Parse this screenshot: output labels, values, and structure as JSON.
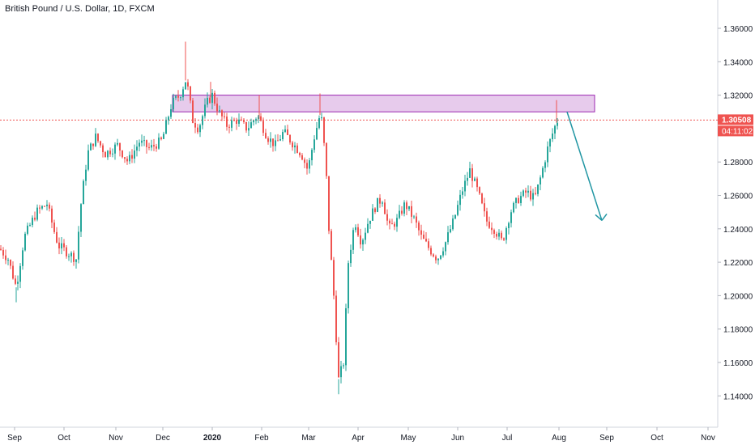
{
  "header": {
    "title": "British Pound / U.S. Dollar, 1D, FXCM"
  },
  "price_axis": {
    "ticks": [
      "1.36000",
      "1.34000",
      "1.32000",
      "1.30000",
      "1.28000",
      "1.26000",
      "1.24000",
      "1.22000",
      "1.20000",
      "1.18000",
      "1.16000",
      "1.14000"
    ],
    "last_price": "1.30508",
    "countdown": "04:11:02"
  },
  "time_axis": {
    "labels": [
      "Sep",
      "Oct",
      "Nov",
      "Dec",
      "2020",
      "Feb",
      "Mar",
      "Apr",
      "May",
      "Jun",
      "Jul",
      "Aug",
      "Sep",
      "Oct",
      "Nov"
    ]
  },
  "colors": {
    "up": "#26a69a",
    "down": "#ef5350",
    "zone_fill": "#e1bee7",
    "zone_border": "#9c27b0",
    "arrow": "#2196a3",
    "last_price": "#ef5350"
  },
  "chart_data": {
    "type": "candlestick",
    "symbol": "GBP/USD",
    "interval": "1D",
    "ylim": [
      1.12,
      1.37
    ],
    "last_price": 1.30508,
    "resistance_zone": {
      "low": 1.31,
      "high": 1.32,
      "from": "Dec 2019",
      "to": "late Aug 2020"
    },
    "projection_arrow": {
      "from": {
        "date": "Aug 2020",
        "price": 1.31
      },
      "to": {
        "date": "late Aug 2020",
        "price": 1.245
      }
    },
    "series": [
      {
        "date": "Aug 2019",
        "price": 1.225
      },
      {
        "date": "Sep 2019",
        "price": 1.205
      },
      {
        "date": "Sep 2019",
        "price": 1.235
      },
      {
        "date": "Sep 2019",
        "price": 1.25
      },
      {
        "date": "Sep 2019",
        "price": 1.255
      },
      {
        "date": "Oct 2019",
        "price": 1.235
      },
      {
        "date": "Oct 2019",
        "price": 1.228
      },
      {
        "date": "Oct 2019",
        "price": 1.225
      },
      {
        "date": "Oct 2019",
        "price": 1.28
      },
      {
        "date": "Oct 2019",
        "price": 1.295
      },
      {
        "date": "Nov 2019",
        "price": 1.285
      },
      {
        "date": "Nov 2019",
        "price": 1.29
      },
      {
        "date": "Nov 2019",
        "price": 1.28
      },
      {
        "date": "Nov 2019",
        "price": 1.29
      },
      {
        "date": "Dec 2019",
        "price": 1.293
      },
      {
        "date": "Dec 2019",
        "price": 1.315
      },
      {
        "date": "Dec 2019",
        "price": 1.33
      },
      {
        "date": "Dec 2019",
        "price": 1.305
      },
      {
        "date": "Jan 2020",
        "price": 1.31
      },
      {
        "date": "Jan 2020",
        "price": 1.302
      },
      {
        "date": "Jan 2020",
        "price": 1.305
      },
      {
        "date": "Feb 2020",
        "price": 1.31
      },
      {
        "date": "Feb 2020",
        "price": 1.295
      },
      {
        "date": "Feb 2020",
        "price": 1.29
      },
      {
        "date": "Feb 2020",
        "price": 1.29
      },
      {
        "date": "Mar 2020",
        "price": 1.28
      },
      {
        "date": "Mar 2020",
        "price": 1.31
      },
      {
        "date": "Mar 2020",
        "price": 1.24
      },
      {
        "date": "Mar 2020",
        "price": 1.15
      },
      {
        "date": "Mar 2020",
        "price": 1.2
      },
      {
        "date": "Apr 2020",
        "price": 1.24
      },
      {
        "date": "Apr 2020",
        "price": 1.235
      },
      {
        "date": "Apr 2020",
        "price": 1.245
      },
      {
        "date": "Apr 2020",
        "price": 1.25
      },
      {
        "date": "May 2020",
        "price": 1.24
      },
      {
        "date": "May 2020",
        "price": 1.225
      },
      {
        "date": "May 2020",
        "price": 1.22
      },
      {
        "date": "May 2020",
        "price": 1.225
      },
      {
        "date": "Jun 2020",
        "price": 1.26
      },
      {
        "date": "Jun 2020",
        "price": 1.275
      },
      {
        "date": "Jun 2020",
        "price": 1.245
      },
      {
        "date": "Jun 2020",
        "price": 1.235
      },
      {
        "date": "Jul 2020",
        "price": 1.25
      },
      {
        "date": "Jul 2020",
        "price": 1.26
      },
      {
        "date": "Jul 2020",
        "price": 1.275
      },
      {
        "date": "Jul 2020",
        "price": 1.3
      },
      {
        "date": "Aug 2020",
        "price": 1.305
      }
    ]
  }
}
